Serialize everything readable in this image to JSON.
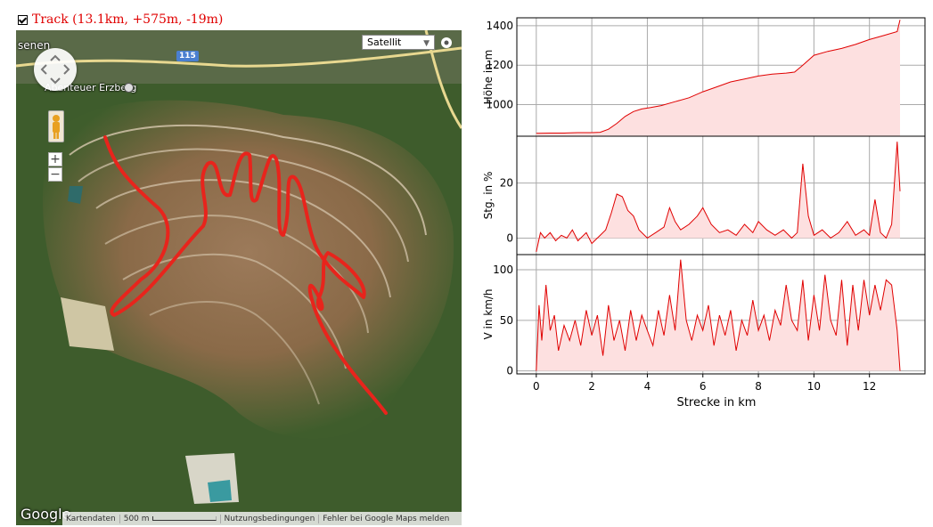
{
  "legend": {
    "checked": true,
    "label": "Track (13.1km, +575m, -19m)"
  },
  "map": {
    "maptype_selected": "Satellit",
    "road_number": "115",
    "place_label": "Abenteuer Erzberg",
    "corner_label": "senen",
    "google_logo": "Google",
    "attribution": {
      "kartendaten": "Kartendaten",
      "scale": "500 m",
      "terms": "Nutzungsbedingungen",
      "report": "Fehler bei Google Maps melden"
    },
    "zoom_in_label": "+",
    "zoom_out_label": "−",
    "track_color": "#e8241c"
  },
  "chart_data": [
    {
      "type": "area",
      "ylabel": "Höhe in m",
      "yticks": [
        1000,
        1200,
        1400
      ],
      "ylim": [
        840,
        1440
      ],
      "xlim": [
        -0.7,
        14
      ],
      "grid": true,
      "color": "#e00000",
      "fill": "#fde0e0",
      "x": [
        0,
        0.5,
        1,
        1.5,
        2,
        2.3,
        2.6,
        2.9,
        3.2,
        3.5,
        3.8,
        4.1,
        4.5,
        5,
        5.5,
        6,
        6.5,
        7,
        7.5,
        8,
        8.5,
        9,
        9.3,
        9.6,
        10,
        10.5,
        11,
        11.5,
        12,
        12.5,
        13,
        13.1
      ],
      "y": [
        855,
        856,
        856,
        858,
        858,
        860,
        875,
        905,
        940,
        965,
        978,
        985,
        995,
        1015,
        1035,
        1065,
        1090,
        1115,
        1130,
        1145,
        1155,
        1160,
        1165,
        1200,
        1250,
        1270,
        1285,
        1305,
        1330,
        1350,
        1370,
        1430
      ]
    },
    {
      "type": "area",
      "ylabel": "Stg. in %",
      "yticks": [
        0,
        20
      ],
      "ylim": [
        -6,
        37
      ],
      "xlim": [
        -0.7,
        14
      ],
      "grid": true,
      "color": "#e00000",
      "fill": "#fde0e0",
      "x": [
        0,
        0.15,
        0.3,
        0.5,
        0.7,
        0.9,
        1.1,
        1.3,
        1.5,
        1.8,
        2,
        2.2,
        2.5,
        2.7,
        2.9,
        3.1,
        3.3,
        3.5,
        3.7,
        4,
        4.3,
        4.6,
        4.8,
        5,
        5.2,
        5.5,
        5.8,
        6,
        6.3,
        6.6,
        6.9,
        7.2,
        7.5,
        7.8,
        8,
        8.3,
        8.6,
        8.9,
        9.2,
        9.4,
        9.6,
        9.8,
        10,
        10.3,
        10.6,
        10.9,
        11.2,
        11.5,
        11.8,
        12,
        12.2,
        12.4,
        12.6,
        12.8,
        13,
        13.1
      ],
      "y": [
        -5,
        2,
        0,
        2,
        -1,
        1,
        0,
        3,
        -1,
        2,
        -2,
        0,
        3,
        9,
        16,
        15,
        10,
        8,
        3,
        0,
        2,
        4,
        11,
        6,
        3,
        5,
        8,
        11,
        5,
        2,
        3,
        1,
        5,
        2,
        6,
        3,
        1,
        3,
        0,
        2,
        27,
        8,
        1,
        3,
        0,
        2,
        6,
        1,
        3,
        1,
        14,
        2,
        0,
        5,
        35,
        17
      ]
    },
    {
      "type": "area",
      "ylabel": "V in km/h",
      "yticks": [
        0,
        50,
        100
      ],
      "ylim": [
        -3,
        115
      ],
      "xlim": [
        -0.7,
        14
      ],
      "xticks": [
        0,
        2,
        4,
        6,
        8,
        10,
        12
      ],
      "xlabel": "Strecke in km",
      "grid": true,
      "color": "#e00000",
      "fill": "#fde0e0",
      "x": [
        0,
        0.1,
        0.2,
        0.35,
        0.5,
        0.65,
        0.8,
        1,
        1.2,
        1.4,
        1.6,
        1.8,
        2,
        2.2,
        2.4,
        2.6,
        2.8,
        3,
        3.2,
        3.4,
        3.6,
        3.8,
        4,
        4.2,
        4.4,
        4.6,
        4.8,
        5,
        5.2,
        5.4,
        5.6,
        5.8,
        6,
        6.2,
        6.4,
        6.6,
        6.8,
        7,
        7.2,
        7.4,
        7.6,
        7.8,
        8,
        8.2,
        8.4,
        8.6,
        8.8,
        9,
        9.2,
        9.4,
        9.6,
        9.8,
        10,
        10.2,
        10.4,
        10.6,
        10.8,
        11,
        11.2,
        11.4,
        11.6,
        11.8,
        12,
        12.2,
        12.4,
        12.6,
        12.8,
        13,
        13.1
      ],
      "y": [
        0,
        65,
        30,
        85,
        40,
        55,
        20,
        45,
        30,
        50,
        25,
        60,
        35,
        55,
        15,
        65,
        30,
        50,
        20,
        60,
        30,
        55,
        40,
        25,
        60,
        35,
        75,
        40,
        110,
        50,
        30,
        55,
        40,
        65,
        25,
        55,
        35,
        60,
        20,
        50,
        35,
        70,
        40,
        55,
        30,
        60,
        45,
        85,
        50,
        40,
        90,
        30,
        75,
        40,
        95,
        50,
        35,
        90,
        25,
        85,
        40,
        90,
        55,
        85,
        60,
        90,
        85,
        40,
        0
      ]
    }
  ]
}
